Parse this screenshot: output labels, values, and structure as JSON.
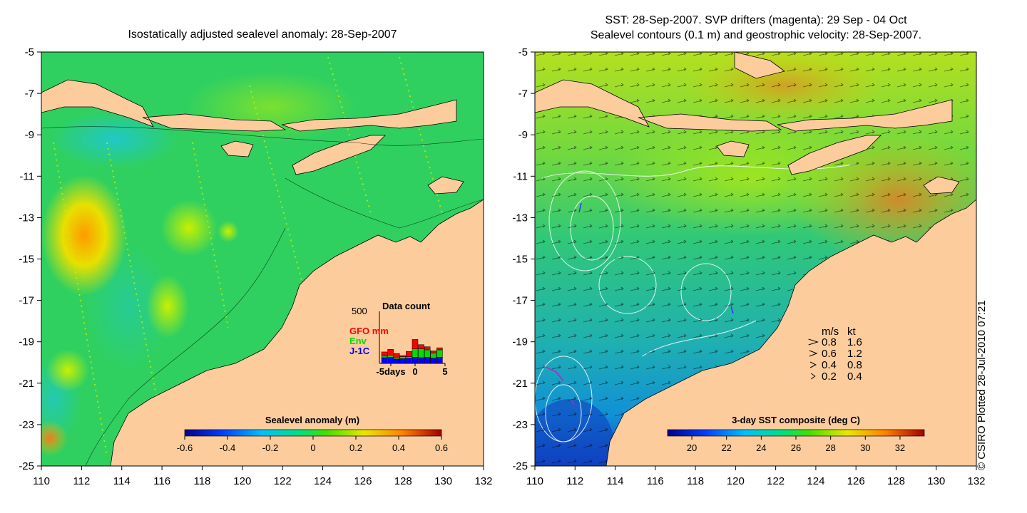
{
  "left_panel": {
    "title": "Isostatically adjusted sealevel anomaly: 28-Sep-2007",
    "colorbar": {
      "label": "Sealevel anomaly (m)",
      "ticks": [
        "-0.6",
        "-0.4",
        "-0.2",
        "0",
        "0.2",
        "0.4",
        "0.6"
      ],
      "range": [
        -0.6,
        0.6
      ]
    },
    "inset": {
      "title": "Data count",
      "ymax_label": "500",
      "legend": [
        {
          "label": "GFO mm",
          "color": "#ff0000"
        },
        {
          "label": "Env",
          "color": "#00dd00"
        },
        {
          "label": "J-1C",
          "color": "#0000ff"
        }
      ],
      "x_ticks": [
        "-5days",
        "0",
        "5"
      ],
      "bars": [
        {
          "blue": 55,
          "green": 15,
          "red": 40
        },
        {
          "blue": 60,
          "green": 20,
          "red": 55
        },
        {
          "blue": 40,
          "green": 10,
          "red": 45
        },
        {
          "blue": 45,
          "green": 20,
          "red": 10
        },
        {
          "blue": 50,
          "green": 15,
          "red": 50
        },
        {
          "blue": 60,
          "green": 80,
          "red": 90
        },
        {
          "blue": 55,
          "green": 85,
          "red": 40
        },
        {
          "blue": 60,
          "green": 70,
          "red": 30
        },
        {
          "blue": 50,
          "green": 50,
          "red": 20
        },
        {
          "blue": 60,
          "green": 70,
          "red": 20
        }
      ]
    }
  },
  "right_panel": {
    "title_line1": "SST: 28-Sep-2007. SVP drifters (magenta): 29 Sep - 04 Oct",
    "title_line2": "Sealevel contours (0.1 m) and geostrophic velocity: 28-Sep-2007.",
    "colorbar": {
      "label": "3-day SST composite (deg C)",
      "ticks": [
        "20",
        "22",
        "24",
        "26",
        "28",
        "30",
        "32"
      ],
      "range": [
        18.6,
        33.4
      ]
    },
    "velocity_legend": {
      "header_ms": "m/s",
      "header_kt": "kt",
      "rows": [
        {
          "ms": "0.8",
          "kt": "1.6"
        },
        {
          "ms": "0.6",
          "kt": "1.2"
        },
        {
          "ms": "0.4",
          "kt": "0.8"
        },
        {
          "ms": "0.2",
          "kt": "0.4"
        }
      ]
    }
  },
  "axes": {
    "y_ticks": [
      "-5",
      "-7",
      "-9",
      "-11",
      "-13",
      "-15",
      "-17",
      "-19",
      "-21",
      "-23",
      "-25"
    ],
    "x_ticks": [
      "110",
      "112",
      "114",
      "116",
      "118",
      "120",
      "122",
      "124",
      "126",
      "128",
      "130",
      "132"
    ],
    "lon_range": [
      110,
      132
    ],
    "lat_range": [
      -25,
      -5
    ]
  },
  "credit": "© CSIRO Plotted 28-Jul-2010 07:21",
  "colors": {
    "land": "#fccc9c",
    "ocean_base_left": "#2fd060",
    "ocean_base_right": "#5fd040"
  }
}
